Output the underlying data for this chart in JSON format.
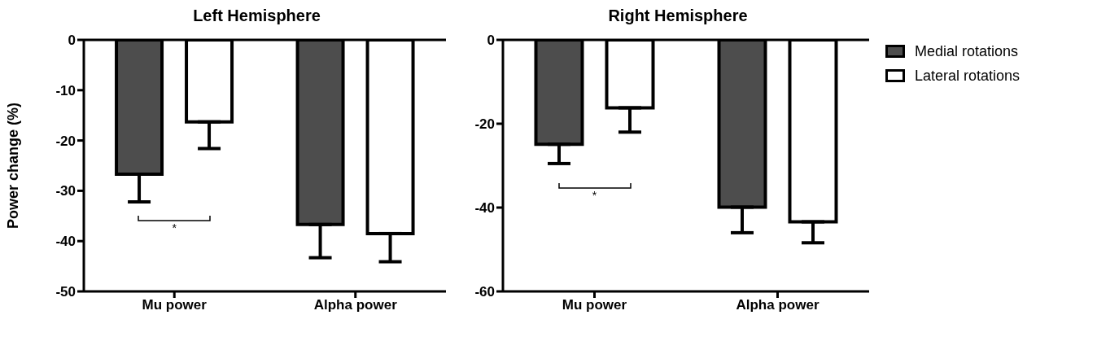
{
  "chart_data": [
    {
      "type": "bar",
      "title": "Left Hemisphere",
      "ylabel": "Power change (%)",
      "categories": [
        "Mu power",
        "Alpha power"
      ],
      "series": [
        {
          "color": "#4d4d4d",
          "values": [
            -26.7,
            -36.7
          ],
          "errors": [
            [
              -32.2,
              -26.7
            ],
            [
              -43.3,
              -36.7
            ]
          ]
        },
        {
          "color": "#ffffff",
          "values": [
            -16.3,
            -38.5
          ],
          "errors": [
            [
              -21.6,
              -16.3
            ],
            [
              -44.1,
              -38.5
            ]
          ]
        }
      ],
      "ylim": [
        -50,
        0
      ],
      "yticks": [
        0,
        -10,
        -20,
        -30,
        -40,
        -50
      ],
      "grid": false,
      "legend": false,
      "annotations": [
        "*"
      ]
    },
    {
      "type": "bar",
      "title": "Right Hemisphere",
      "categories": [
        "Mu power",
        "Alpha power"
      ],
      "series": [
        {
          "name": "Medial rotations",
          "color": "#4d4d4d",
          "values": [
            -24.9,
            -39.9
          ],
          "errors": [
            [
              -29.5,
              -24.9
            ],
            [
              -46.0,
              -39.9
            ]
          ]
        },
        {
          "name": "Lateral rotations",
          "color": "#ffffff",
          "values": [
            -16.2,
            -43.4
          ],
          "errors": [
            [
              -22.0,
              -16.2
            ],
            [
              -48.4,
              -43.4
            ]
          ]
        }
      ],
      "ylim": [
        -60,
        0
      ],
      "yticks": [
        0,
        -20,
        -40,
        -60
      ],
      "grid": false,
      "legend": "top right",
      "annotations": [
        "*"
      ]
    }
  ]
}
